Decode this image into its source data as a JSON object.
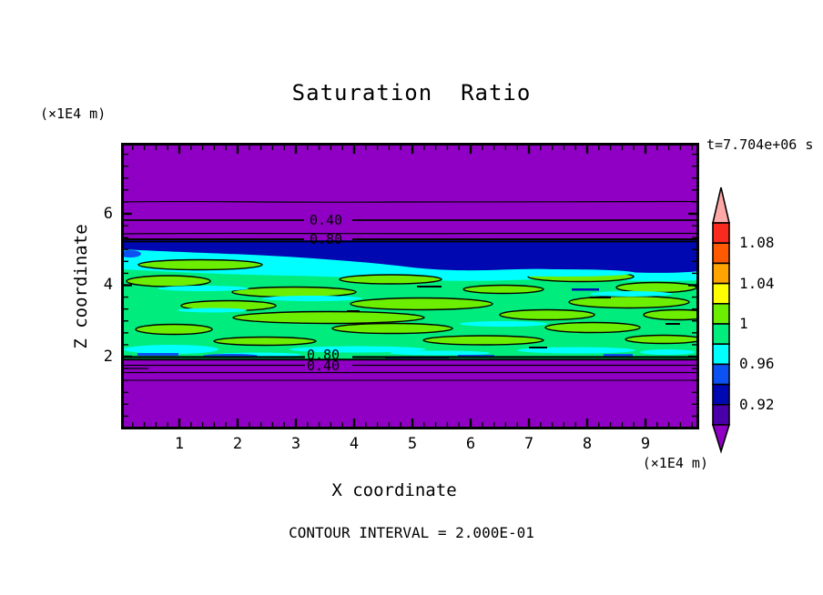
{
  "title": "Saturation  Ratio",
  "annotations": {
    "y_axis_unit": "(×1E4 m)",
    "x_axis_unit": "(×1E4 m)",
    "time": "t=7.704e+06 s",
    "footer": "CONTOUR INTERVAL = 2.000E-01"
  },
  "axes": {
    "x": {
      "label": "X coordinate",
      "ticks": [
        "1",
        "2",
        "3",
        "4",
        "5",
        "6",
        "7",
        "8",
        "9"
      ]
    },
    "z": {
      "label": "Z coordinate",
      "ticks": [
        "6",
        "4",
        "2"
      ]
    }
  },
  "plot": {
    "contour_labels": [
      "0.40",
      "0.80",
      "0.80",
      "0.40"
    ]
  },
  "colorbar": {
    "labels": [
      "1.08",
      "1.04",
      "1",
      "0.96",
      "0.92"
    ],
    "colors": [
      "#f92a1e",
      "#ff5a00",
      "#ffa400",
      "#ffff00",
      "#6cee00",
      "#00ec7c",
      "#00ffff",
      "#0c52f2",
      "#0008b2",
      "#4a00a8"
    ],
    "over_arrow_color": "#ffa8a8",
    "under_arrow_color": "#9000c4"
  },
  "colors": {
    "purple": "#9000c4",
    "navy": "#0008b2",
    "blue": "#0c52f2",
    "cyan": "#00ffff",
    "green": "#00ec7c",
    "chartreuse": "#6cee00",
    "yellow": "#ffff00",
    "orange": "#ffa400",
    "orangered": "#ff5a00",
    "red": "#f92a1e",
    "pink": "#ffa8a8",
    "indigo": "#4a00a8"
  },
  "chart_data": {
    "type": "heatmap",
    "title": "Saturation Ratio",
    "xlabel": "X coordinate",
    "ylabel": "Z coordinate",
    "x_units": "×1E4 m",
    "z_units": "×1E4 m",
    "x_ticks": [
      1,
      2,
      3,
      4,
      5,
      6,
      7,
      8,
      9
    ],
    "z_ticks": [
      2,
      4,
      6
    ],
    "xlim": [
      0,
      9.9
    ],
    "zlim": [
      0,
      8
    ],
    "time_annotation": "t=7.704e+06 s",
    "contour_interval": 0.2,
    "labeled_contour_lines": [
      0.4,
      0.8
    ],
    "colorbar_scale": {
      "tick_labels": [
        1.08,
        1.04,
        1,
        0.96,
        0.92
      ],
      "band_boundaries": [
        0.9,
        0.92,
        0.94,
        0.96,
        0.98,
        1.0,
        1.02,
        1.04,
        1.06,
        1.08,
        1.1
      ],
      "band_colors_top_to_bottom": [
        "#f92a1e",
        "#ff5a00",
        "#ffa400",
        "#ffff00",
        "#6cee00",
        "#00ec7c",
        "#00ffff",
        "#0c52f2",
        "#0008b2",
        "#4a00a8"
      ],
      "over_color": "#ffa8a8",
      "under_color": "#9000c4"
    },
    "vertical_profile": [
      {
        "z_range": [
          5.5,
          8.0
        ],
        "saturation_ratio": "<0.90",
        "color": "purple",
        "note": "line contours 0.40 and 0.80 labeled at z≈5.8 and z≈5.3"
      },
      {
        "z_range": [
          4.9,
          5.5
        ],
        "saturation_ratio": "0.90–0.96",
        "color": "navy/blue band, thicker toward right"
      },
      {
        "z_range": [
          4.6,
          5.0
        ],
        "saturation_ratio": "0.96–0.98",
        "color": "cyan band"
      },
      {
        "z_range": [
          2.0,
          4.7
        ],
        "saturation_ratio": "0.98–1.02",
        "color": "green field with elongated chartreuse lenses (1.00–1.02) outlined in black and cyan streaks"
      },
      {
        "z_range": [
          0.0,
          2.0
        ],
        "saturation_ratio": "<0.90",
        "color": "purple",
        "note": "line contours 0.80 and 0.40 labeled at z≈2.0 and z≈1.8"
      }
    ]
  }
}
